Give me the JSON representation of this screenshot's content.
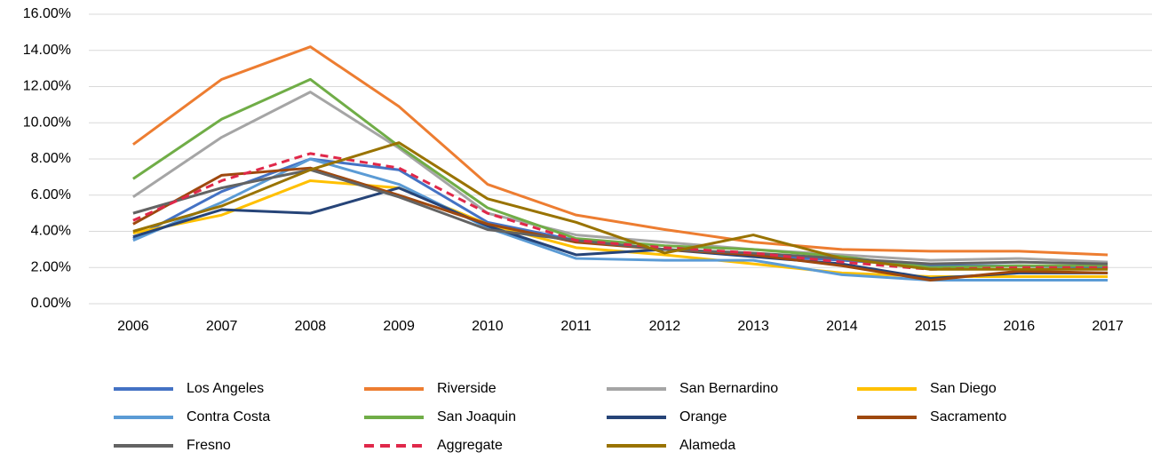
{
  "chart_data": {
    "type": "line",
    "categories": [
      "2006",
      "2007",
      "2008",
      "2009",
      "2010",
      "2011",
      "2012",
      "2013",
      "2014",
      "2015",
      "2016",
      "2017"
    ],
    "ylim": [
      0,
      16
    ],
    "yticks": [
      {
        "value": 0,
        "label": "0.00%"
      },
      {
        "value": 2,
        "label": "2.00%"
      },
      {
        "value": 4,
        "label": "4.00%"
      },
      {
        "value": 6,
        "label": "6.00%"
      },
      {
        "value": 8,
        "label": "8.00%"
      },
      {
        "value": 10,
        "label": "10.00%"
      },
      {
        "value": 12,
        "label": "12.00%"
      },
      {
        "value": 14,
        "label": "14.00%"
      },
      {
        "value": 16,
        "label": "16.00%"
      }
    ],
    "grid": true,
    "legend": "bottom",
    "series": [
      {
        "name": "Los Angeles",
        "color": "#4472c4",
        "values": [
          3.6,
          6.2,
          8.0,
          7.4,
          4.5,
          3.5,
          3.0,
          2.7,
          2.4,
          2.1,
          2.1,
          2.0
        ]
      },
      {
        "name": "Riverside",
        "color": "#ed7d31",
        "values": [
          8.8,
          12.4,
          14.2,
          10.9,
          6.6,
          4.9,
          4.1,
          3.4,
          3.0,
          2.9,
          2.9,
          2.7
        ]
      },
      {
        "name": "San Bernardino",
        "color": "#a5a5a5",
        "values": [
          5.9,
          9.2,
          11.7,
          8.6,
          5.0,
          3.8,
          3.4,
          3.0,
          2.7,
          2.4,
          2.5,
          2.3
        ]
      },
      {
        "name": "San Diego",
        "color": "#ffc000",
        "values": [
          3.9,
          4.9,
          6.8,
          6.4,
          4.4,
          3.1,
          2.7,
          2.2,
          1.7,
          1.5,
          1.5,
          1.5
        ]
      },
      {
        "name": "Contra Costa",
        "color": "#5b9bd5",
        "values": [
          3.5,
          5.6,
          8.0,
          6.6,
          4.2,
          2.5,
          2.4,
          2.4,
          1.6,
          1.3,
          1.3,
          1.3
        ]
      },
      {
        "name": "San Joaquin",
        "color": "#70ad47",
        "values": [
          6.9,
          10.2,
          12.4,
          8.7,
          5.3,
          3.6,
          3.2,
          3.0,
          2.6,
          2.0,
          2.1,
          2.1
        ]
      },
      {
        "name": "Orange",
        "color": "#264478",
        "values": [
          3.7,
          5.2,
          5.0,
          6.4,
          4.3,
          2.7,
          3.0,
          2.6,
          2.2,
          1.4,
          1.7,
          1.7
        ]
      },
      {
        "name": "Sacramento",
        "color": "#9e480e",
        "values": [
          4.4,
          7.1,
          7.5,
          6.0,
          4.4,
          3.4,
          3.0,
          2.7,
          2.1,
          1.3,
          1.8,
          1.7
        ]
      },
      {
        "name": "Fresno",
        "color": "#636363",
        "values": [
          5.0,
          6.4,
          7.4,
          5.9,
          4.1,
          3.5,
          3.0,
          2.8,
          2.5,
          2.2,
          2.3,
          2.2
        ]
      },
      {
        "name": "Aggregate",
        "color": "#e0284a",
        "dashed": true,
        "values": [
          4.6,
          6.8,
          8.3,
          7.5,
          5.0,
          3.5,
          3.1,
          2.8,
          2.3,
          1.9,
          2.0,
          2.0
        ]
      },
      {
        "name": "Alameda",
        "color": "#997300",
        "values": [
          4.0,
          5.4,
          7.4,
          8.9,
          5.8,
          4.5,
          2.8,
          3.8,
          2.5,
          1.9,
          1.9,
          1.9
        ]
      }
    ]
  }
}
